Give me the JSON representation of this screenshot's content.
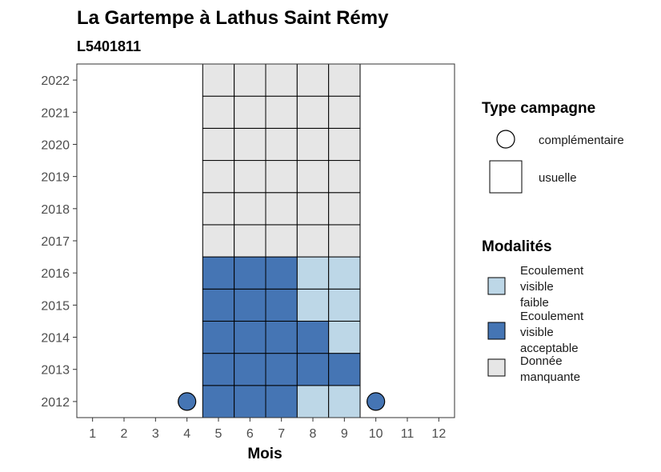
{
  "chart_data": {
    "type": "heatmap",
    "title": "La Gartempe à Lathus Saint Rémy",
    "subtitle": "L5401811",
    "xlabel": "Mois",
    "ylabel": "",
    "x_ticks": [
      "1",
      "2",
      "3",
      "4",
      "5",
      "6",
      "7",
      "8",
      "9",
      "10",
      "11",
      "12"
    ],
    "y_ticks": [
      "2012",
      "2013",
      "2014",
      "2015",
      "2016",
      "2017",
      "2018",
      "2019",
      "2020",
      "2021",
      "2022"
    ],
    "legend_campagne": {
      "title": "Type campagne",
      "items": [
        {
          "key": "complementaire",
          "label": "complémentaire",
          "shape": "circle"
        },
        {
          "key": "usuelle",
          "label": "usuelle",
          "shape": "square"
        }
      ]
    },
    "legend_modalites": {
      "title": "Modalités",
      "items": [
        {
          "key": "faible",
          "lines": [
            "Ecoulement",
            "visible",
            "faible"
          ],
          "color": "#bdd7e7"
        },
        {
          "key": "acceptable",
          "lines": [
            "Ecoulement",
            "visible",
            "acceptable"
          ],
          "color": "#4575b4"
        },
        {
          "key": "manquante",
          "lines": [
            "Donnée",
            "manquante"
          ],
          "color": "#e6e6e6"
        }
      ]
    },
    "cells": [
      {
        "year": 2012,
        "month": 4,
        "type": "complementaire",
        "modalite": "acceptable"
      },
      {
        "year": 2012,
        "month": 5,
        "type": "usuelle",
        "modalite": "acceptable"
      },
      {
        "year": 2012,
        "month": 6,
        "type": "usuelle",
        "modalite": "acceptable"
      },
      {
        "year": 2012,
        "month": 7,
        "type": "usuelle",
        "modalite": "acceptable"
      },
      {
        "year": 2012,
        "month": 8,
        "type": "usuelle",
        "modalite": "faible"
      },
      {
        "year": 2012,
        "month": 9,
        "type": "usuelle",
        "modalite": "faible"
      },
      {
        "year": 2012,
        "month": 10,
        "type": "complementaire",
        "modalite": "acceptable"
      },
      {
        "year": 2013,
        "month": 5,
        "type": "usuelle",
        "modalite": "acceptable"
      },
      {
        "year": 2013,
        "month": 6,
        "type": "usuelle",
        "modalite": "acceptable"
      },
      {
        "year": 2013,
        "month": 7,
        "type": "usuelle",
        "modalite": "acceptable"
      },
      {
        "year": 2013,
        "month": 8,
        "type": "usuelle",
        "modalite": "acceptable"
      },
      {
        "year": 2013,
        "month": 9,
        "type": "usuelle",
        "modalite": "acceptable"
      },
      {
        "year": 2014,
        "month": 5,
        "type": "usuelle",
        "modalite": "acceptable"
      },
      {
        "year": 2014,
        "month": 6,
        "type": "usuelle",
        "modalite": "acceptable"
      },
      {
        "year": 2014,
        "month": 7,
        "type": "usuelle",
        "modalite": "acceptable"
      },
      {
        "year": 2014,
        "month": 8,
        "type": "usuelle",
        "modalite": "acceptable"
      },
      {
        "year": 2014,
        "month": 9,
        "type": "usuelle",
        "modalite": "faible"
      },
      {
        "year": 2015,
        "month": 5,
        "type": "usuelle",
        "modalite": "acceptable"
      },
      {
        "year": 2015,
        "month": 6,
        "type": "usuelle",
        "modalite": "acceptable"
      },
      {
        "year": 2015,
        "month": 7,
        "type": "usuelle",
        "modalite": "acceptable"
      },
      {
        "year": 2015,
        "month": 8,
        "type": "usuelle",
        "modalite": "faible"
      },
      {
        "year": 2015,
        "month": 9,
        "type": "usuelle",
        "modalite": "faible"
      },
      {
        "year": 2016,
        "month": 5,
        "type": "usuelle",
        "modalite": "acceptable"
      },
      {
        "year": 2016,
        "month": 6,
        "type": "usuelle",
        "modalite": "acceptable"
      },
      {
        "year": 2016,
        "month": 7,
        "type": "usuelle",
        "modalite": "acceptable"
      },
      {
        "year": 2016,
        "month": 8,
        "type": "usuelle",
        "modalite": "faible"
      },
      {
        "year": 2016,
        "month": 9,
        "type": "usuelle",
        "modalite": "faible"
      },
      {
        "year": 2017,
        "month": 5,
        "type": "usuelle",
        "modalite": "manquante"
      },
      {
        "year": 2017,
        "month": 6,
        "type": "usuelle",
        "modalite": "manquante"
      },
      {
        "year": 2017,
        "month": 7,
        "type": "usuelle",
        "modalite": "manquante"
      },
      {
        "year": 2017,
        "month": 8,
        "type": "usuelle",
        "modalite": "manquante"
      },
      {
        "year": 2017,
        "month": 9,
        "type": "usuelle",
        "modalite": "manquante"
      },
      {
        "year": 2018,
        "month": 5,
        "type": "usuelle",
        "modalite": "manquante"
      },
      {
        "year": 2018,
        "month": 6,
        "type": "usuelle",
        "modalite": "manquante"
      },
      {
        "year": 2018,
        "month": 7,
        "type": "usuelle",
        "modalite": "manquante"
      },
      {
        "year": 2018,
        "month": 8,
        "type": "usuelle",
        "modalite": "manquante"
      },
      {
        "year": 2018,
        "month": 9,
        "type": "usuelle",
        "modalite": "manquante"
      },
      {
        "year": 2019,
        "month": 5,
        "type": "usuelle",
        "modalite": "manquante"
      },
      {
        "year": 2019,
        "month": 6,
        "type": "usuelle",
        "modalite": "manquante"
      },
      {
        "year": 2019,
        "month": 7,
        "type": "usuelle",
        "modalite": "manquante"
      },
      {
        "year": 2019,
        "month": 8,
        "type": "usuelle",
        "modalite": "manquante"
      },
      {
        "year": 2019,
        "month": 9,
        "type": "usuelle",
        "modalite": "manquante"
      },
      {
        "year": 2020,
        "month": 5,
        "type": "usuelle",
        "modalite": "manquante"
      },
      {
        "year": 2020,
        "month": 6,
        "type": "usuelle",
        "modalite": "manquante"
      },
      {
        "year": 2020,
        "month": 7,
        "type": "usuelle",
        "modalite": "manquante"
      },
      {
        "year": 2020,
        "month": 8,
        "type": "usuelle",
        "modalite": "manquante"
      },
      {
        "year": 2020,
        "month": 9,
        "type": "usuelle",
        "modalite": "manquante"
      },
      {
        "year": 2021,
        "month": 5,
        "type": "usuelle",
        "modalite": "manquante"
      },
      {
        "year": 2021,
        "month": 6,
        "type": "usuelle",
        "modalite": "manquante"
      },
      {
        "year": 2021,
        "month": 7,
        "type": "usuelle",
        "modalite": "manquante"
      },
      {
        "year": 2021,
        "month": 8,
        "type": "usuelle",
        "modalite": "manquante"
      },
      {
        "year": 2021,
        "month": 9,
        "type": "usuelle",
        "modalite": "manquante"
      },
      {
        "year": 2022,
        "month": 5,
        "type": "usuelle",
        "modalite": "manquante"
      },
      {
        "year": 2022,
        "month": 6,
        "type": "usuelle",
        "modalite": "manquante"
      },
      {
        "year": 2022,
        "month": 7,
        "type": "usuelle",
        "modalite": "manquante"
      },
      {
        "year": 2022,
        "month": 8,
        "type": "usuelle",
        "modalite": "manquante"
      },
      {
        "year": 2022,
        "month": 9,
        "type": "usuelle",
        "modalite": "manquante"
      }
    ]
  }
}
